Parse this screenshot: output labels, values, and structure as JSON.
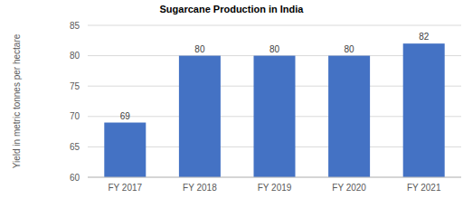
{
  "chart_data": {
    "type": "bar",
    "title": "Sugarcane Production in India",
    "y_label": "Yield in metric tonnes per hectare",
    "categories": [
      "FY 2017",
      "FY 2018",
      "FY 2019",
      "FY 2020",
      "FY 2021"
    ],
    "values": [
      69,
      80,
      80,
      80,
      82
    ],
    "color": "#4472c4",
    "ylim": [
      60,
      85
    ],
    "yticks": [
      60,
      65,
      70,
      75,
      80,
      85
    ],
    "grid": true,
    "data_labels": true
  }
}
